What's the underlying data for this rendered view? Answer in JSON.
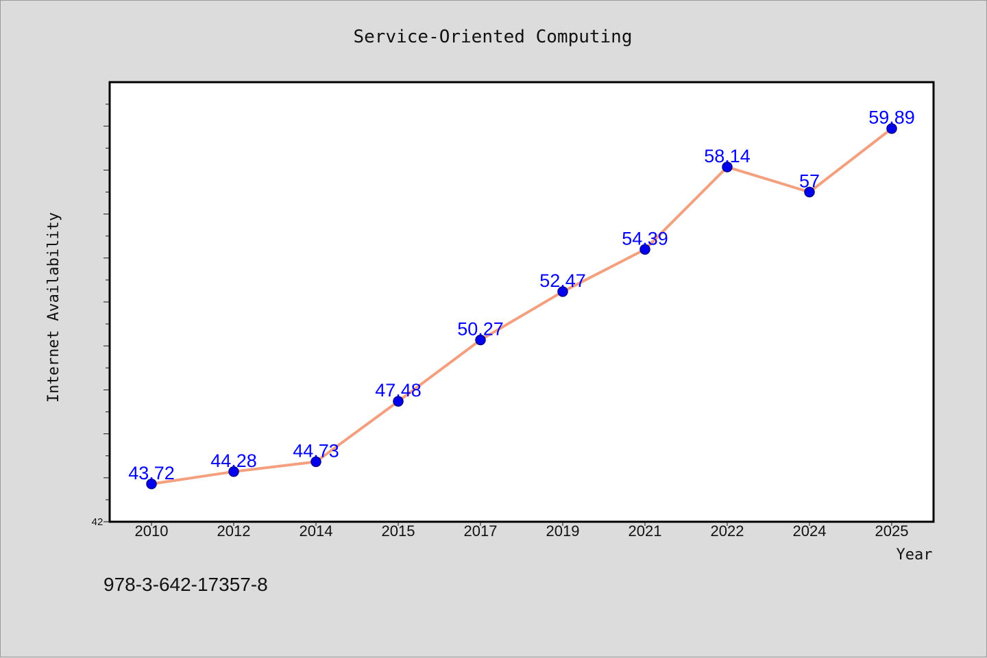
{
  "chart_data": {
    "type": "line",
    "title": "Service-Oriented Computing",
    "xlabel": "Year",
    "ylabel": "Internet Availability",
    "categories": [
      "2010",
      "2012",
      "2014",
      "2015",
      "2017",
      "2019",
      "2021",
      "2022",
      "2024",
      "2025"
    ],
    "series": [
      {
        "values": [
          43.72,
          44.28,
          44.73,
          47.48,
          50.27,
          52.47,
          54.39,
          58.14,
          57,
          59.89
        ],
        "labels": [
          "43.72",
          "44.28",
          "44.73",
          "47.48",
          "50.27",
          "52.47",
          "54.39",
          "58.14",
          "57",
          "59.89"
        ]
      }
    ],
    "ylim": [
      42,
      62
    ],
    "y_tick_labels": [
      "42"
    ],
    "grid": false,
    "legend": "none",
    "colors": {
      "line": "#f4a07e",
      "marker": "#0000ee",
      "marker_edge": "#00008b",
      "data_label": "#0000ff",
      "background": "#dcdcdc",
      "plot_background": "#ffffff"
    }
  },
  "footer": {
    "code": "978-3-642-17357-8"
  }
}
